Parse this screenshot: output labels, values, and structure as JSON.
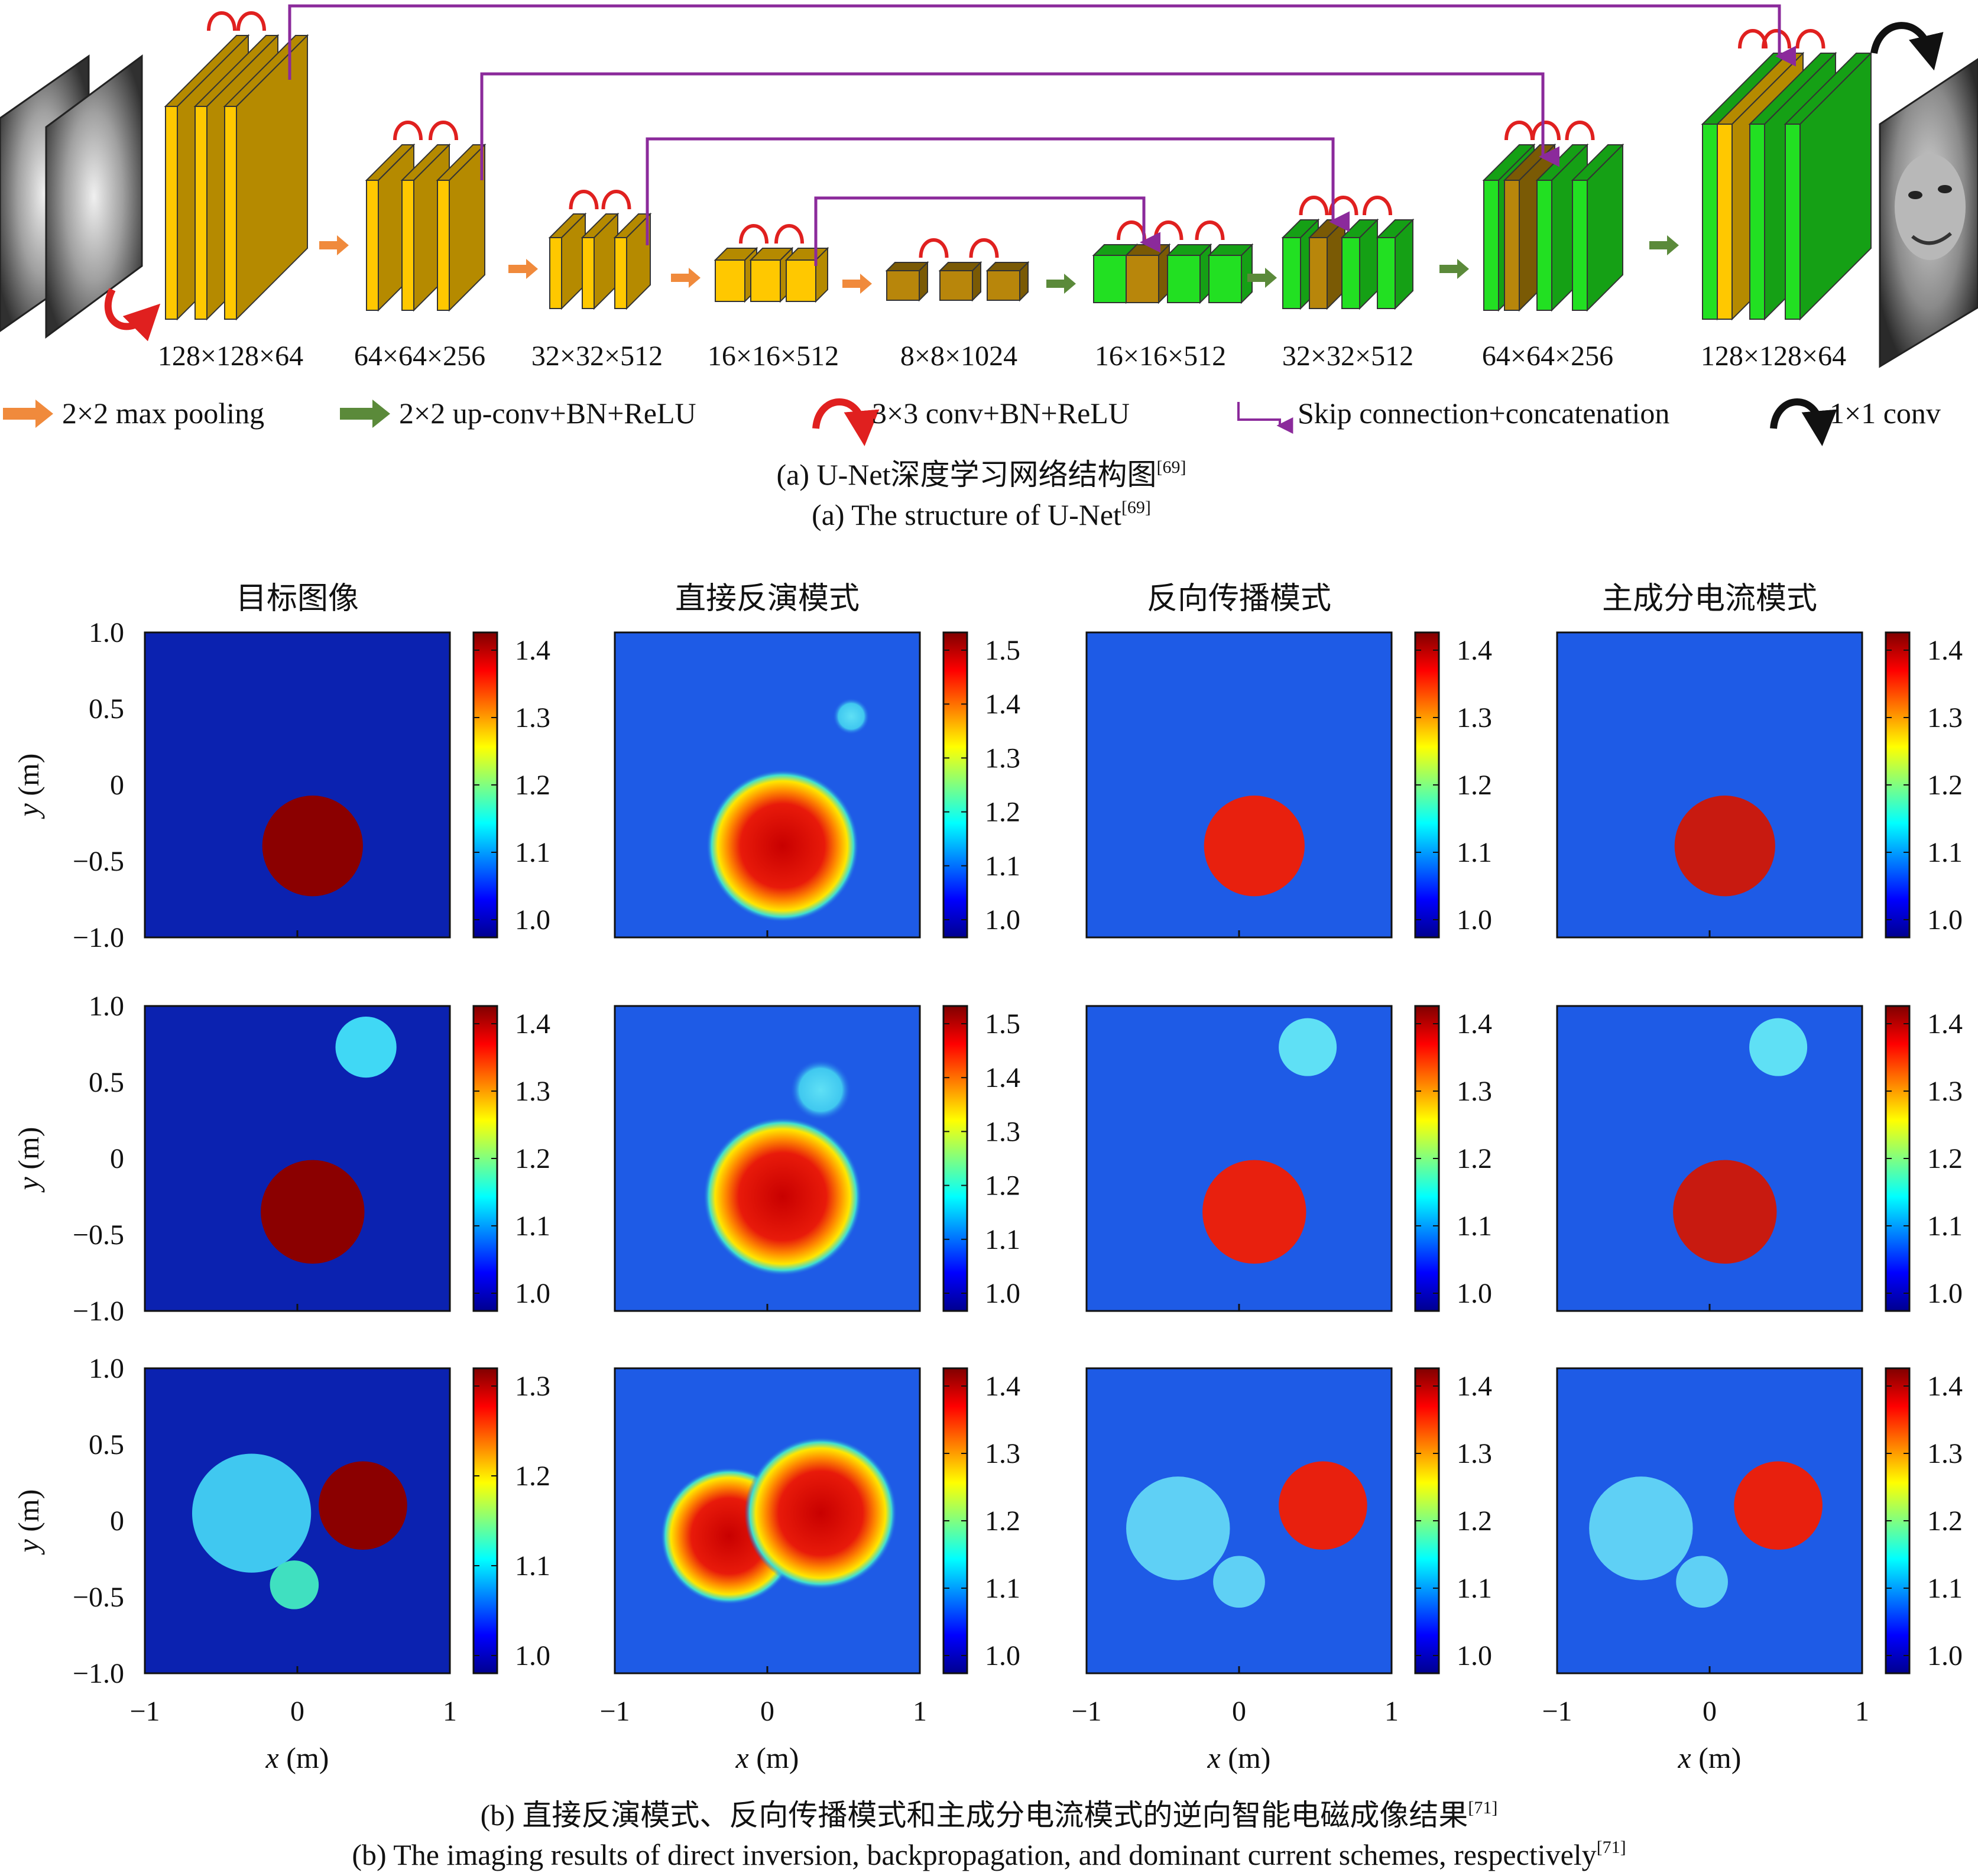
{
  "unet": {
    "dims": [
      "128×128×64",
      "64×64×256",
      "32×32×512",
      "16×16×512",
      "8×8×1024",
      "16×16×512",
      "32×32×512",
      "64×64×256",
      "128×128×64"
    ],
    "legend": [
      {
        "label": "2×2 max pooling",
        "icon": "orange-arrow-icon",
        "color": "#F08A3C"
      },
      {
        "label": "2×2 up-conv+BN+ReLU",
        "icon": "green-arrow-icon",
        "color": "#5B8A3A"
      },
      {
        "label": "3×3 conv+BN+ReLU",
        "icon": "red-arc-icon",
        "color": "#E0201F"
      },
      {
        "label": "Skip connection+concatenation",
        "icon": "purple-bracket-icon",
        "color": "#8B2A9B"
      },
      {
        "label": "1×1 conv",
        "icon": "black-arc-icon",
        "color": "#111111"
      }
    ],
    "caption_cn": "(a) U-Net深度学习网络结构图",
    "caption_en": "(a) The structure of U-Net",
    "ref": "[69]"
  },
  "results": {
    "column_titles": [
      "目标图像",
      "直接反演模式",
      "反向传播模式",
      "主成分电流模式"
    ],
    "y_ticks": [
      "1.0",
      "0.5",
      "0",
      "−0.5",
      "−1.0"
    ],
    "x_ticks": [
      "−1",
      "0",
      "1"
    ],
    "ylabel_var": "y",
    "ylabel_unit": " (m)",
    "xlabel_var": "x",
    "xlabel_unit": " (m)",
    "colorbars": [
      [
        [
          "1.4",
          "1.3",
          "1.2",
          "1.1",
          "1.0"
        ],
        [
          "1.5",
          "1.4",
          "1.3",
          "1.2",
          "1.1",
          "1.0"
        ],
        [
          "1.4",
          "1.3",
          "1.2",
          "1.1",
          "1.0"
        ],
        [
          "1.4",
          "1.3",
          "1.2",
          "1.1",
          "1.0"
        ]
      ],
      [
        [
          "1.4",
          "1.3",
          "1.2",
          "1.1",
          "1.0"
        ],
        [
          "1.5",
          "1.4",
          "1.3",
          "1.2",
          "1.1",
          "1.0"
        ],
        [
          "1.4",
          "1.3",
          "1.2",
          "1.1",
          "1.0"
        ],
        [
          "1.4",
          "1.3",
          "1.2",
          "1.1",
          "1.0"
        ]
      ],
      [
        [
          "1.3",
          "1.2",
          "1.1",
          "1.0"
        ],
        [
          "1.4",
          "1.3",
          "1.2",
          "1.1",
          "1.0"
        ],
        [
          "1.4",
          "1.3",
          "1.2",
          "1.1",
          "1.0"
        ],
        [
          "1.4",
          "1.3",
          "1.2",
          "1.1",
          "1.0"
        ]
      ]
    ],
    "caption_cn": "(b) 直接反演模式、反向传播模式和主成分电流模式的逆向智能电磁成像结果",
    "caption_en": "(b) The imaging results of direct inversion, backpropagation, and dominant current schemes, respectively",
    "ref": "[71]"
  },
  "colors": {
    "encoder_block": "#FFC800",
    "encoder_block_dark": "#B58A00",
    "decoder_block": "#22E022",
    "decoder_block_dark": "#15A015",
    "copied_block": "#B8860B",
    "skip_line": "#8B2A9B",
    "map_background": "#0B22B0",
    "map_background_light": "#1E5BE6"
  }
}
